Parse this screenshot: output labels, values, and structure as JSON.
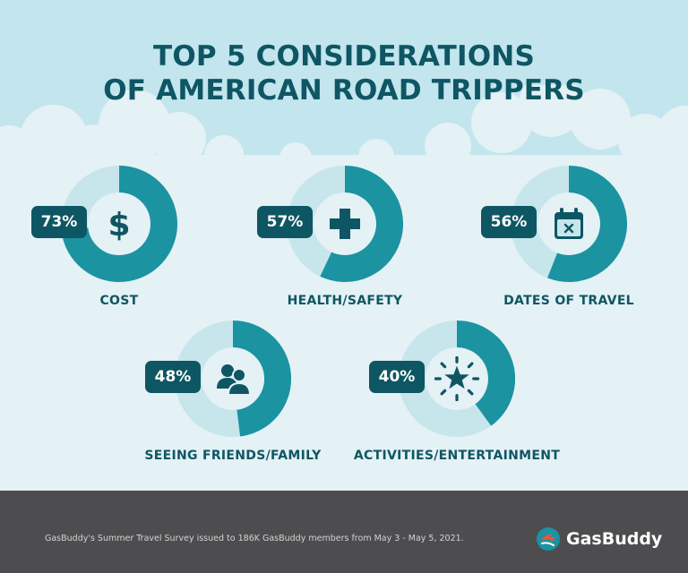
{
  "title_lines": [
    "TOP 5 CONSIDERATIONS",
    "OF AMERICAN ROAD TRIPPERS"
  ],
  "colors": {
    "filled": "#1b93a1",
    "remaining": "#c6e6ec",
    "badge": "#0e5663",
    "heading": "#0e5663",
    "footer": "#4d4d4f"
  },
  "chart_data": {
    "type": "pie",
    "title": "TOP 5 CONSIDERATIONS OF AMERICAN ROAD TRIPPERS",
    "categories": [
      "COST",
      "HEALTH/SAFETY",
      "DATES OF TRAVEL",
      "SEEING FRIENDS/FAMILY",
      "ACTIVITIES/ENTERTAINMENT"
    ],
    "values": [
      73,
      57,
      56,
      48,
      40
    ],
    "value_labels": [
      "73%",
      "57%",
      "56%",
      "48%",
      "40%"
    ],
    "icons": [
      "dollar-icon",
      "cross-icon",
      "calendar-icon",
      "people-icon",
      "star-icon"
    ]
  },
  "footer": {
    "note": "GasBuddy's Summer Travel Survey issued to 186K GasBuddy members from May 3 - May 5, 2021.",
    "logo_text": "GasBuddy"
  }
}
